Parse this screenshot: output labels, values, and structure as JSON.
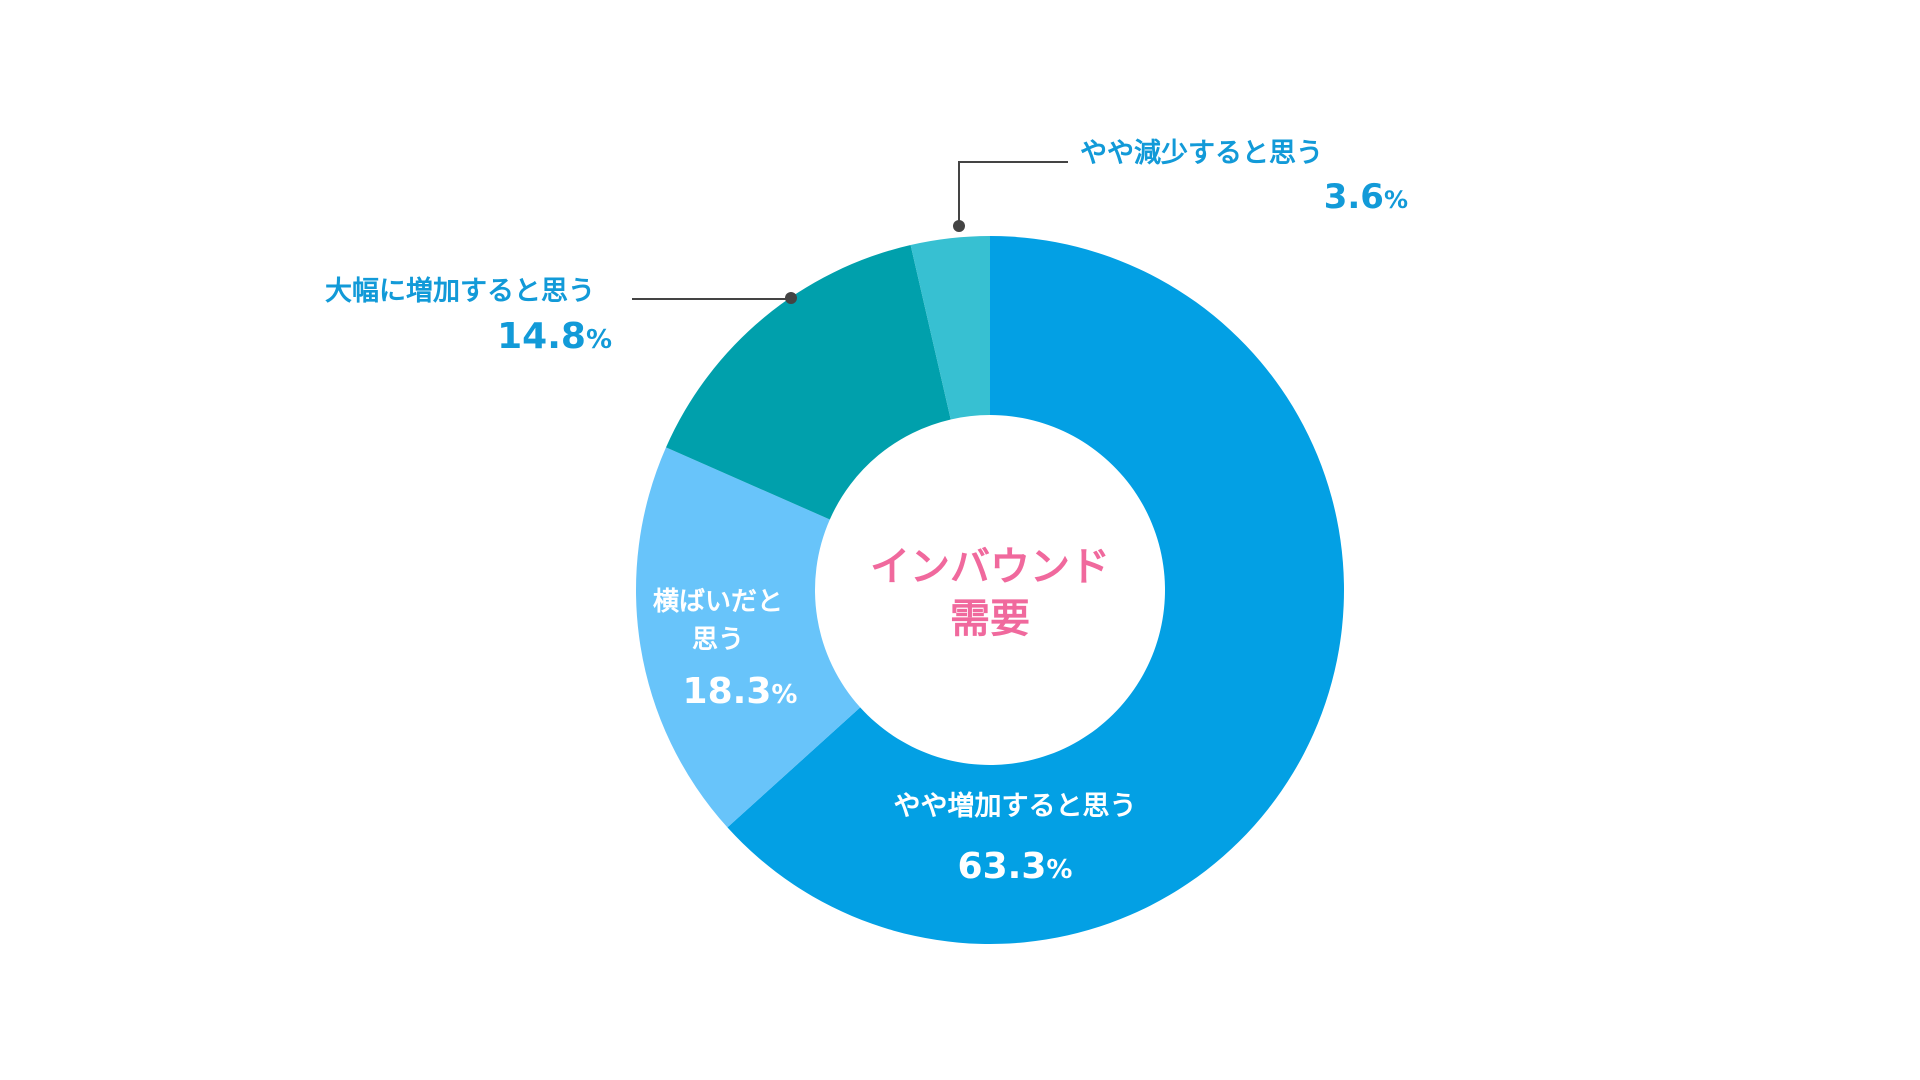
{
  "chart_data": {
    "type": "pie",
    "center_label": [
      "インバウンド",
      "需要"
    ],
    "slices": [
      {
        "label": [
          "やや増加すると思う"
        ],
        "value": 63.3,
        "display": "63.3",
        "unit": "%",
        "color": "#03a0e4",
        "label_placement": "inside",
        "text_color": "#ffffff"
      },
      {
        "label": [
          "横ばいだと",
          "思う"
        ],
        "value": 18.3,
        "display": "18.3",
        "unit": "%",
        "color": "#68c4fa",
        "label_placement": "inside",
        "text_color": "#ffffff"
      },
      {
        "label": [
          "大幅に増加すると思う"
        ],
        "value": 14.8,
        "display": "14.8",
        "unit": "%",
        "color": "#00a0ac",
        "label_placement": "outside-left",
        "text_color": "#129ad8"
      },
      {
        "label": [
          "やや減少すると思う"
        ],
        "value": 3.6,
        "display": "3.6",
        "unit": "%",
        "color": "#37c0d2",
        "label_placement": "outside-top",
        "text_color": "#129ad8"
      }
    ],
    "start": "top",
    "direction": "clockwise",
    "legend": "none"
  },
  "colors": {
    "center_text": "#f0699d",
    "leader_line": "#444444"
  }
}
